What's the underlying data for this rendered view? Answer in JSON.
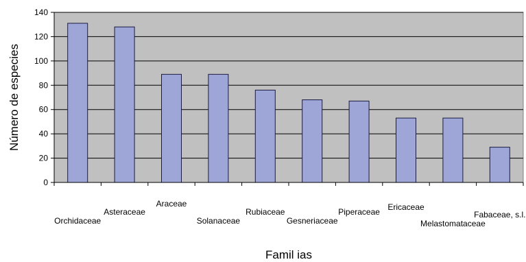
{
  "chart_data": {
    "type": "bar",
    "title": "",
    "xlabel": "Famil ias",
    "ylabel": "Número de especies",
    "categories": [
      "Orchidaceae",
      "Asteraceae",
      "Araceae",
      "Solanaceae",
      "Rubiaceae",
      "Gesneriaceae",
      "Piperaceae",
      "Ericaceae",
      "Melastomataceae",
      "Fabaceae, s.l."
    ],
    "values": [
      131,
      128,
      89,
      89,
      76,
      68,
      67,
      53,
      53,
      29
    ],
    "ylim": [
      0,
      140
    ],
    "yticks": [
      "0",
      "20",
      "40",
      "60",
      "80",
      "100",
      "120",
      "140"
    ],
    "grid": true,
    "legend": "none",
    "colors": {
      "plot_background": "#c0c0c0",
      "bar_fill": "#9ea6d8",
      "bar_stroke": "#1a1a40",
      "gridline": "#000000"
    }
  }
}
